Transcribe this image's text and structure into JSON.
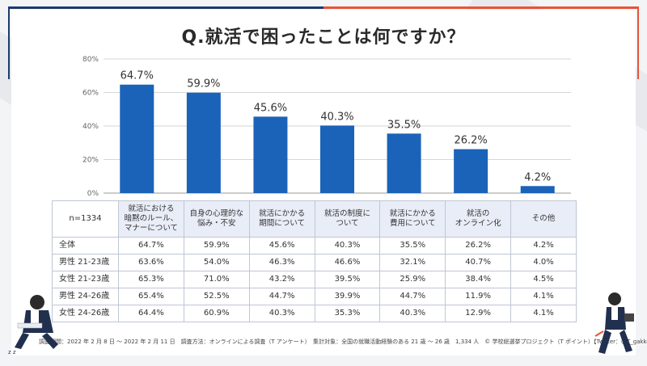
{
  "title": "Q.就活で困ったことは何ですか？",
  "colors": {
    "bar": "#1a63b8",
    "accent_red": "#e8533a",
    "accent_navy": "#1e3a6e"
  },
  "chart_data": {
    "type": "bar",
    "title": "Q.就活で困ったことは何ですか？",
    "categories": [
      "就活における暗黙のルール、マナーについて",
      "自身の心理的な悩み・不安",
      "就活にかかる期間について",
      "就活の制度について",
      "就活にかかる費用について",
      "就活のオンライン化",
      "その他"
    ],
    "values": [
      64.7,
      59.9,
      45.6,
      40.3,
      35.5,
      26.2,
      4.2
    ],
    "value_labels": [
      "64.7%",
      "59.9%",
      "45.6%",
      "40.3%",
      "35.5%",
      "26.2%",
      "4.2%"
    ],
    "ylim": [
      0,
      80
    ],
    "yticks": [
      0,
      20,
      40,
      60,
      80
    ],
    "ytick_labels": [
      "0%",
      "20%",
      "40%",
      "60%",
      "80%"
    ],
    "grid": true
  },
  "table": {
    "corner": "n=1334",
    "headers": [
      [
        "就活における",
        "暗黙のルール、",
        "マナーについて"
      ],
      [
        "自身の心理的な",
        "悩み・不安"
      ],
      [
        "就活にかかる",
        "期間について"
      ],
      [
        "就活の制度に",
        "ついて"
      ],
      [
        "就活にかかる",
        "費用について"
      ],
      [
        "就活の",
        "オンライン化"
      ],
      [
        "その他"
      ]
    ],
    "rows": [
      {
        "label": "全体",
        "values": [
          "64.7%",
          "59.9%",
          "45.6%",
          "40.3%",
          "35.5%",
          "26.2%",
          "4.2%"
        ]
      },
      {
        "label": "男性 21-23歳",
        "values": [
          "63.6%",
          "54.0%",
          "46.3%",
          "46.6%",
          "32.1%",
          "40.7%",
          "4.0%"
        ]
      },
      {
        "label": "女性 21-23歳",
        "values": [
          "65.3%",
          "71.0%",
          "43.2%",
          "39.5%",
          "25.9%",
          "38.4%",
          "4.5%"
        ]
      },
      {
        "label": "男性 24-26歳",
        "values": [
          "65.4%",
          "52.5%",
          "44.7%",
          "39.9%",
          "44.7%",
          "11.9%",
          "4.1%"
        ]
      },
      {
        "label": "女性 24-26歳",
        "values": [
          "64.4%",
          "60.9%",
          "40.3%",
          "35.3%",
          "40.3%",
          "12.9%",
          "4.1%"
        ]
      }
    ]
  },
  "footnote": "調査期間：2022 年 2 月 8 日 ～ 2022 年 2 月 11 日　調査方法：オンラインによる調査（T アンケート）　集計対象：全国の就職活動経験のある 21 歳 ～ 26 歳　1,334 人　© 学校総選挙プロジェクト（T ポイント）【Twitter：@T_gakkou】"
}
